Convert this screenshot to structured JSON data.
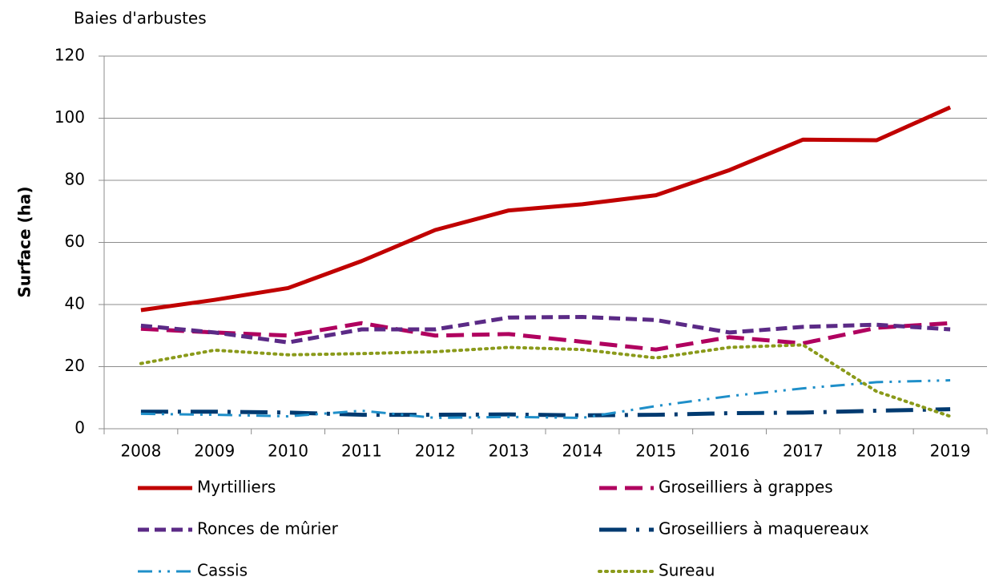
{
  "chart_data": {
    "type": "line",
    "title": "Baies d'arbustes",
    "y_label": "Surface (ha)",
    "categories": [
      "2008",
      "2009",
      "2010",
      "2011",
      "2012",
      "2013",
      "2014",
      "2015",
      "2016",
      "2017",
      "2018",
      "2019"
    ],
    "series": [
      {
        "name": "Myrtilliers",
        "color": "#c00000",
        "values": [
          38.2,
          41.5,
          45.3,
          54,
          64,
          70.3,
          72.3,
          75.2,
          83.3,
          93.1,
          92.9,
          103.5
        ]
      },
      {
        "name": "Groseilliers à grappes",
        "color": "#b0005f",
        "values": [
          32.2,
          31,
          30,
          34,
          30,
          30.5,
          28,
          25.5,
          29.5,
          27.5,
          32.5,
          34
        ]
      },
      {
        "name": "Ronces de mûrier",
        "color": "#5b2a86",
        "values": [
          33.2,
          31,
          27.8,
          32,
          32,
          35.8,
          36,
          35,
          31,
          32.8,
          33.5,
          32
        ]
      },
      {
        "name": "Groseilliers à maquereaux",
        "color": "#003a70",
        "values": [
          5.5,
          5.5,
          5.2,
          4.5,
          4.5,
          4.6,
          4.3,
          4.5,
          5,
          5.2,
          5.8,
          6.3
        ]
      },
      {
        "name": "Cassis",
        "color": "#1f8fc9",
        "values": [
          4.8,
          4.5,
          4,
          5.8,
          3.5,
          3.8,
          3.5,
          7.3,
          10.5,
          13,
          15,
          15.6
        ]
      },
      {
        "name": "Sureau",
        "color": "#8a9a1a",
        "values": [
          21,
          25.3,
          23.8,
          24.2,
          24.8,
          26.2,
          25.5,
          22.8,
          26.2,
          27,
          12,
          4
        ]
      }
    ],
    "ylim": [
      0,
      120
    ],
    "yticks": [
      0,
      20,
      40,
      60,
      80,
      100,
      120
    ],
    "grid": true,
    "legend": "bottom"
  }
}
